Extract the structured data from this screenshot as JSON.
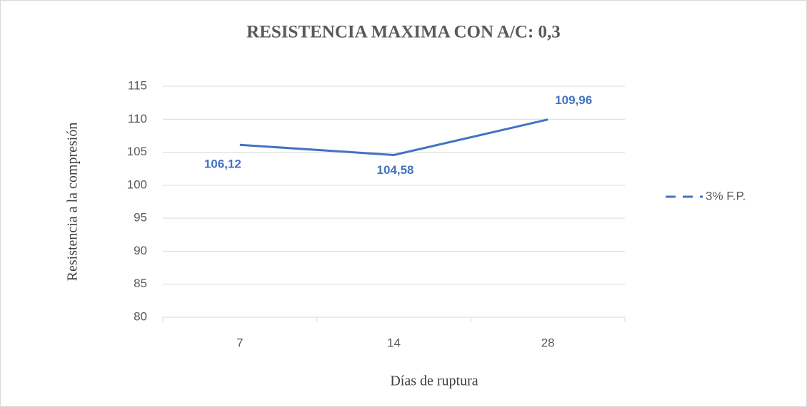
{
  "chart_data": {
    "type": "line",
    "title": "RESISTENCIA MAXIMA CON A/C: 0,3",
    "x_label": "Días de ruptura",
    "y_label": "Resistencia a la compresión",
    "categories": [
      "7",
      "14",
      "28"
    ],
    "series": [
      {
        "name": "3% F.P.",
        "color": "#4472c4",
        "values": [
          106.12,
          104.58,
          109.96
        ],
        "value_labels": [
          "106,12",
          "104,58",
          "109,96"
        ]
      }
    ],
    "ylim": [
      80,
      115
    ],
    "yticks": [
      80,
      85,
      90,
      95,
      100,
      105,
      110,
      115
    ],
    "grid": true,
    "legend": "right"
  }
}
